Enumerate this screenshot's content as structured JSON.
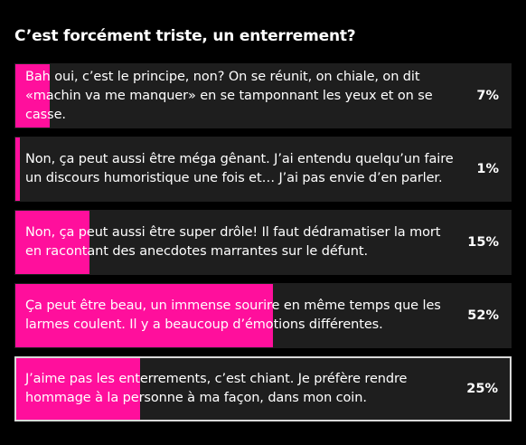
{
  "poll": {
    "title": "C’est forcément triste, un enterrement?",
    "bar_color": "#ff0f9c",
    "options": [
      {
        "text": "Bah oui, c’est le principe, non? On se réunit, on chiale, on dit «machin va me manquer» en se tamponnant les yeux et on se casse.",
        "percent_label": "7%",
        "percent": 7,
        "selected": false
      },
      {
        "text": "Non, ça peut aussi être méga gênant. J’ai entendu quelqu’un faire un discours humoristique une fois et… J’ai pas envie d’en parler.",
        "percent_label": "1%",
        "percent": 1,
        "selected": false
      },
      {
        "text": "Non, ça peut aussi être super drôle! Il faut dédramatiser la mort en racontant des anecdotes marrantes sur le défunt.",
        "percent_label": "15%",
        "percent": 15,
        "selected": false
      },
      {
        "text": "Ça peut être beau, un immense sourire en même temps que les larmes coulent. Il y a beaucoup d’émotions différentes.",
        "percent_label": "52%",
        "percent": 52,
        "selected": false
      },
      {
        "text": "J’aime pas les enterrements, c’est chiant. Je préfère rendre hommage à la personne à ma façon, dans mon coin.",
        "percent_label": "25%",
        "percent": 25,
        "selected": true
      }
    ]
  }
}
